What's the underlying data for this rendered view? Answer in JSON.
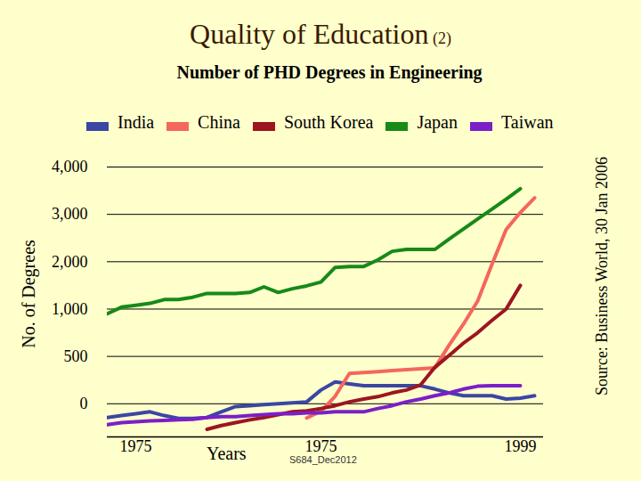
{
  "chart_data": {
    "type": "line",
    "title": "Quality of Education (2)",
    "subtitle": "Number of PHD Degrees in Engineering",
    "y_label": "No. of Degrees",
    "x_label": "Years",
    "source": "Source: Business World, 30 Jan 2006",
    "annotations": [
      "S684_Dec2012"
    ],
    "legend": "top",
    "grid": true,
    "categories": [
      null,
      null,
      "1975",
      null,
      null,
      null,
      null,
      null,
      null,
      null,
      null,
      null,
      null,
      null,
      null,
      "1975",
      null,
      null,
      null,
      null,
      null,
      null,
      null,
      null,
      null,
      null,
      null,
      null,
      null,
      "1999",
      null
    ],
    "ylim": [
      -350,
      4000
    ],
    "yticks": [
      0,
      500,
      {
        "value": 1000,
        "label": "1,000"
      },
      {
        "value": 2000,
        "label": "2,000"
      },
      {
        "value": 3000,
        "label": "3,000"
      },
      {
        "value": 4000,
        "label": "4,000"
      }
    ],
    "series": [
      {
        "name": "India",
        "color": "#3b46a3",
        "values": [
          -145,
          -125,
          -105,
          -85,
          -125,
          -155,
          -155,
          -145,
          -85,
          -30,
          -20,
          -10,
          0,
          10,
          20,
          145,
          230,
          210,
          190,
          190,
          190,
          190,
          190,
          155,
          115,
          85,
          85,
          85,
          50,
          60,
          85
        ]
      },
      {
        "name": "China",
        "color": "#f4675c",
        "values": [
          null,
          null,
          null,
          null,
          null,
          null,
          null,
          null,
          null,
          null,
          null,
          null,
          null,
          null,
          -150,
          -80,
          80,
          320,
          330,
          340,
          350,
          360,
          370,
          380,
          620,
          840,
          1170,
          1940,
          2680,
          3040,
          3350
        ]
      },
      {
        "name": "South Korea",
        "color": "#9b1620",
        "values": [
          null,
          null,
          null,
          null,
          null,
          null,
          null,
          -270,
          -230,
          -200,
          -170,
          -145,
          -115,
          -85,
          -75,
          -50,
          -20,
          20,
          50,
          75,
          115,
          145,
          200,
          385,
          510,
          640,
          750,
          880,
          1000,
          1500,
          null
        ]
      },
      {
        "name": "Japan",
        "color": "#178a17",
        "values": [
          950,
          1040,
          1080,
          1120,
          1200,
          1200,
          1250,
          1330,
          1330,
          1330,
          1350,
          1470,
          1350,
          1430,
          1490,
          1570,
          1880,
          1900,
          1900,
          2040,
          2220,
          2260,
          2260,
          2260,
          2480,
          2690,
          2900,
          3110,
          3320,
          3540,
          null
        ]
      },
      {
        "name": "Taiwan",
        "color": "#7b1fc8",
        "values": [
          -220,
          -200,
          -190,
          -180,
          -175,
          -170,
          -165,
          -145,
          -135,
          -135,
          -125,
          -115,
          -105,
          -105,
          -95,
          -95,
          -85,
          -85,
          -85,
          -50,
          -20,
          20,
          50,
          85,
          115,
          155,
          185,
          190,
          190,
          190,
          null
        ]
      }
    ]
  }
}
